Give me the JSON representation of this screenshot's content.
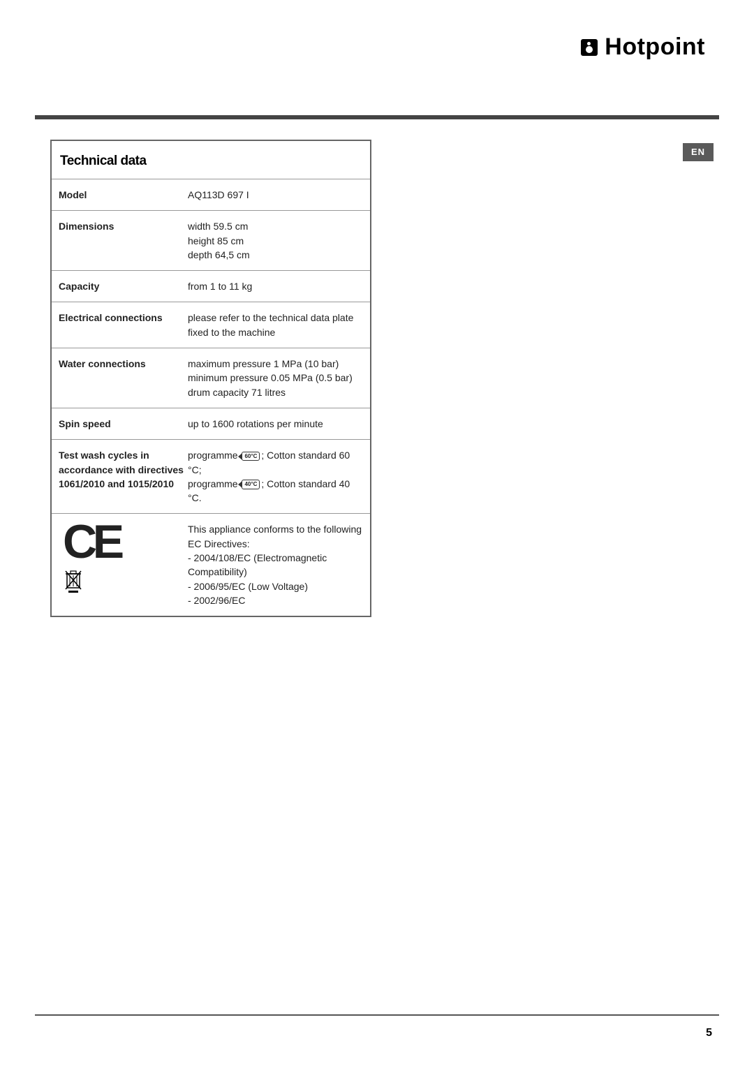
{
  "brand": "Hotpoint",
  "lang_badge": "EN",
  "page_number": "5",
  "table": {
    "title": "Technical data",
    "rows": [
      {
        "label": "Model",
        "value": "AQ113D 697 I"
      },
      {
        "label": "Dimensions",
        "value": "width 59.5 cm\nheight 85 cm\ndepth 64,5 cm"
      },
      {
        "label": "Capacity",
        "value": "from 1 to 11 kg"
      },
      {
        "label": "Electrical connections",
        "value": "please refer to the technical data plate fixed to the machine"
      },
      {
        "label": "Water connections",
        "value": "maximum pressure 1 MPa (10 bar)\nminimum pressure 0.05 MPa (0.5 bar)\ndrum capacity 71 litres"
      },
      {
        "label": "Spin speed",
        "value": "up to 1600 rotations per minute"
      },
      {
        "label": "Test wash cycles in accordance with directives 1061/2010 and 1015/2010",
        "value_html": "programme <span class='prog-badge'>60°C</span>; Cotton standard 60 °C;<br>programme <span class='prog-badge'>40°C</span>; Cotton standard 40 °C."
      },
      {
        "icons": true,
        "value": "This appliance conforms to the following EC Directives:\n- 2004/108/EC (Electromagnetic Compatibility)\n- 2006/95/EC (Low Voltage)\n- 2002/96/EC"
      }
    ]
  }
}
